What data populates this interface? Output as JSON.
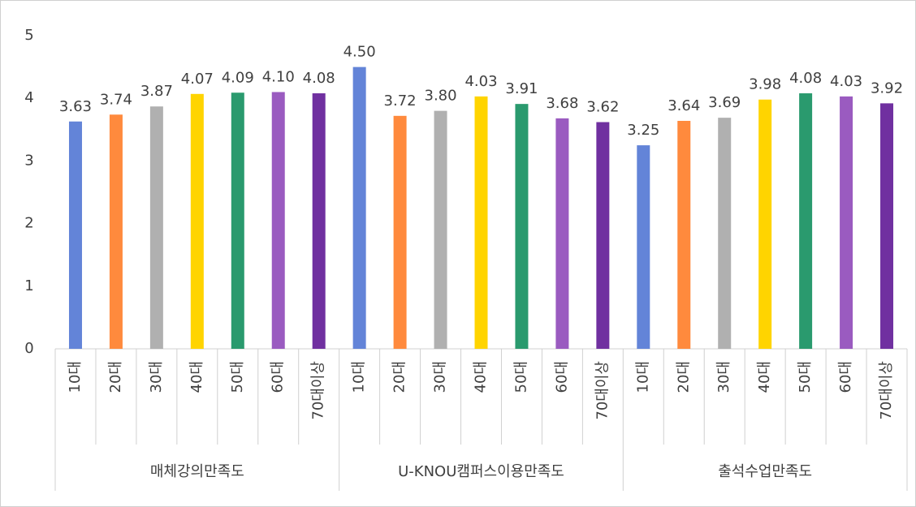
{
  "chart_data": {
    "type": "bar",
    "subcategories": [
      "10대",
      "20대",
      "30대",
      "40대",
      "50대",
      "60대",
      "70대이상"
    ],
    "colors": [
      "#6384d8",
      "#ff8a3d",
      "#b0b0b0",
      "#ffd400",
      "#2a9a6e",
      "#9a5bc0",
      "#7030a0"
    ],
    "groups": [
      {
        "name": "매체강의만족도",
        "values": [
          3.63,
          3.74,
          3.87,
          4.07,
          4.09,
          4.1,
          4.08
        ],
        "value_labels": [
          "3.63",
          "3.74",
          "3.87",
          "4.07",
          "4.09",
          "4.10",
          "4.08"
        ]
      },
      {
        "name": "U-KNOU캠퍼스이용만족도",
        "values": [
          4.5,
          3.72,
          3.8,
          4.03,
          3.91,
          3.68,
          3.62
        ],
        "value_labels": [
          "4.50",
          "3.72",
          "3.80",
          "4.03",
          "3.91",
          "3.68",
          "3.62"
        ]
      },
      {
        "name": "출석수업만족도",
        "values": [
          3.25,
          3.64,
          3.69,
          3.98,
          4.08,
          4.03,
          3.92
        ],
        "value_labels": [
          "3.25",
          "3.64",
          "3.69",
          "3.98",
          "4.08",
          "4.03",
          "3.92"
        ]
      }
    ],
    "ylim": [
      0,
      5
    ],
    "yticks": [
      0,
      1,
      2,
      3,
      4,
      5
    ],
    "grid": false
  }
}
